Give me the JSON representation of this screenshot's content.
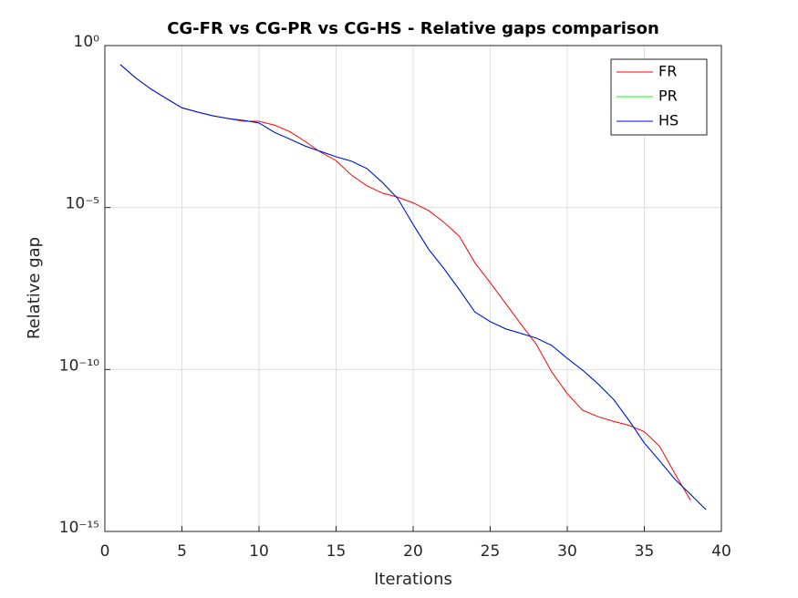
{
  "chart_data": {
    "type": "line",
    "title": "CG-FR vs CG-PR vs CG-HS - Relative gaps comparison",
    "xlabel": "Iterations",
    "ylabel": "Relative gap",
    "x": [
      1,
      2,
      3,
      4,
      5,
      6,
      7,
      8,
      9,
      10,
      11,
      12,
      13,
      14,
      15,
      16,
      17,
      18,
      19,
      20,
      21,
      22,
      23,
      24,
      25,
      26,
      27,
      28,
      29,
      30,
      31,
      32,
      33,
      34,
      35,
      36,
      37,
      38,
      39
    ],
    "series": [
      {
        "name": "FR",
        "color": "#ff0000",
        "values": [
          0.26,
          0.1,
          0.045,
          0.023,
          0.012,
          0.0089,
          0.0068,
          0.0056,
          0.0046,
          0.0046,
          0.0035,
          0.0022,
          0.0011,
          0.00051,
          0.00028,
          0.0001,
          4.7e-05,
          2.8e-05,
          2.1e-05,
          1.4e-05,
          8.1e-06,
          3.5e-06,
          1.3e-06,
          2e-07,
          4.8e-08,
          1.1e-08,
          2.5e-09,
          5.9e-10,
          8.3e-11,
          1.8e-11,
          5.5e-12,
          3.5e-12,
          2.5e-12,
          1.9e-12,
          1.2e-12,
          4.2e-13,
          5.9e-14,
          9.1e-15,
          null
        ]
      },
      {
        "name": "PR",
        "color": "#00ff00",
        "values": [
          0.26,
          0.1,
          0.045,
          0.023,
          0.012,
          0.0089,
          0.0068,
          0.0056,
          0.0049,
          0.0041,
          0.0021,
          0.0013,
          0.00079,
          0.00054,
          0.00037,
          0.00027,
          0.00016,
          6e-05,
          1.9e-05,
          3e-06,
          5.2e-07,
          1.3e-07,
          2.9e-08,
          6e-09,
          3e-09,
          1.8e-09,
          1.3e-09,
          9.3e-10,
          5.5e-10,
          2.2e-10,
          9.5e-11,
          3.6e-11,
          1.2e-11,
          2.7e-12,
          5.4e-13,
          1.5e-13,
          4e-14,
          1.4e-14,
          4.7e-15
        ]
      },
      {
        "name": "HS",
        "color": "#0000ff",
        "values": [
          0.26,
          0.1,
          0.045,
          0.023,
          0.012,
          0.0089,
          0.0068,
          0.0056,
          0.0049,
          0.0041,
          0.0021,
          0.0013,
          0.00079,
          0.00054,
          0.00037,
          0.00027,
          0.00016,
          6e-05,
          1.9e-05,
          3e-06,
          5.2e-07,
          1.3e-07,
          2.9e-08,
          6e-09,
          3e-09,
          1.8e-09,
          1.3e-09,
          9.3e-10,
          5.5e-10,
          2.2e-10,
          9.5e-11,
          3.6e-11,
          1.2e-11,
          2.7e-12,
          5.4e-13,
          1.5e-13,
          4e-14,
          1.4e-14,
          4.7e-15
        ]
      }
    ],
    "xlim": [
      0,
      40
    ],
    "xticks": [
      0,
      5,
      10,
      15,
      20,
      25,
      30,
      35,
      40
    ],
    "ylim": [
      1e-15,
      1
    ],
    "yticks": [
      {
        "value": 1e-15,
        "label": "10⁻¹⁵"
      },
      {
        "value": 1e-10,
        "label": "10⁻¹⁰"
      },
      {
        "value": 1e-05,
        "label": "10⁻⁵"
      },
      {
        "value": 1,
        "label": "10⁰"
      }
    ],
    "yscale": "log",
    "grid": true,
    "legend": "top-right"
  }
}
